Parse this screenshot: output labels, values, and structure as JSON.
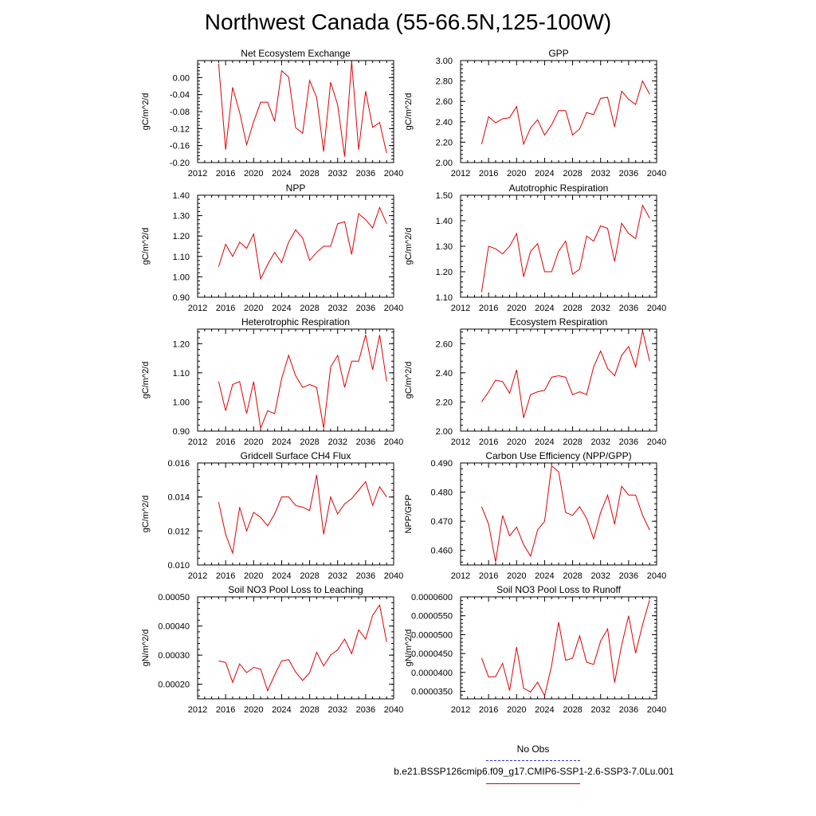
{
  "title": "Northwest Canada (55-66.5N,125-100W)",
  "colors": {
    "series": "#e00000",
    "obs": "#3333cc",
    "axis": "#000000"
  },
  "chart_data": [
    {
      "type": "line",
      "title": "Net Ecosystem Exchange",
      "ylabel": "gC/m^2/d",
      "xlim": [
        2012,
        2040
      ],
      "ylim": [
        -0.2,
        0.04
      ],
      "xticks": [
        "2012",
        "2016",
        "2020",
        "2024",
        "2028",
        "2032",
        "2036",
        "2040"
      ],
      "yticks": [
        "0.00",
        "-0.04",
        "-0.08",
        "-0.12",
        "-0.16",
        "-0.20"
      ],
      "series": [
        {
          "x": [
            2015,
            2016,
            2017,
            2018,
            2019,
            2020,
            2021,
            2022,
            2023,
            2024,
            2025,
            2026,
            2027,
            2028,
            2029,
            2030,
            2031,
            2032,
            2033,
            2034,
            2035,
            2036,
            2037,
            2038,
            2039
          ],
          "y": [
            0.033,
            -0.17,
            -0.023,
            -0.082,
            -0.158,
            -0.104,
            -0.058,
            -0.058,
            -0.103,
            0.016,
            0.001,
            -0.118,
            -0.131,
            -0.007,
            -0.047,
            -0.174,
            -0.011,
            -0.064,
            -0.186,
            0.038,
            -0.17,
            -0.032,
            -0.117,
            -0.106,
            -0.178
          ]
        }
      ]
    },
    {
      "type": "line",
      "title": "GPP",
      "ylabel": "gC/m^2/d",
      "xlim": [
        2012,
        2040
      ],
      "ylim": [
        2.0,
        3.0
      ],
      "xticks": [
        "2012",
        "2016",
        "2020",
        "2024",
        "2028",
        "2032",
        "2036",
        "2040"
      ],
      "yticks": [
        "3.00",
        "2.80",
        "2.60",
        "2.40",
        "2.20",
        "2.00"
      ],
      "series": [
        {
          "x": [
            2015,
            2016,
            2017,
            2018,
            2019,
            2020,
            2021,
            2022,
            2023,
            2024,
            2025,
            2026,
            2027,
            2028,
            2029,
            2030,
            2031,
            2032,
            2033,
            2034,
            2035,
            2036,
            2037,
            2038,
            2039
          ],
          "y": [
            2.18,
            2.45,
            2.39,
            2.43,
            2.44,
            2.55,
            2.18,
            2.34,
            2.42,
            2.27,
            2.37,
            2.51,
            2.51,
            2.27,
            2.33,
            2.49,
            2.47,
            2.63,
            2.64,
            2.35,
            2.7,
            2.62,
            2.57,
            2.8,
            2.67
          ]
        }
      ]
    },
    {
      "type": "line",
      "title": "NPP",
      "ylabel": "gC/m^2/d",
      "xlim": [
        2012,
        2040
      ],
      "ylim": [
        0.9,
        1.4
      ],
      "xticks": [
        "2012",
        "2016",
        "2020",
        "2024",
        "2028",
        "2032",
        "2036",
        "2040"
      ],
      "yticks": [
        "1.40",
        "1.30",
        "1.20",
        "1.10",
        "1.00",
        "0.90"
      ],
      "series": [
        {
          "x": [
            2015,
            2016,
            2017,
            2018,
            2019,
            2020,
            2021,
            2022,
            2023,
            2024,
            2025,
            2026,
            2027,
            2028,
            2029,
            2030,
            2031,
            2032,
            2033,
            2034,
            2035,
            2036,
            2037,
            2038,
            2039
          ],
          "y": [
            1.05,
            1.16,
            1.1,
            1.17,
            1.14,
            1.21,
            0.99,
            1.06,
            1.12,
            1.07,
            1.17,
            1.23,
            1.19,
            1.08,
            1.12,
            1.15,
            1.15,
            1.26,
            1.27,
            1.11,
            1.31,
            1.28,
            1.24,
            1.34,
            1.26
          ]
        }
      ]
    },
    {
      "type": "line",
      "title": "Autotrophic Respiration",
      "ylabel": "gC/m^2/d",
      "xlim": [
        2012,
        2040
      ],
      "ylim": [
        1.1,
        1.5
      ],
      "xticks": [
        "2012",
        "2016",
        "2020",
        "2024",
        "2028",
        "2032",
        "2036",
        "2040"
      ],
      "yticks": [
        "1.50",
        "1.40",
        "1.30",
        "1.20",
        "1.10"
      ],
      "series": [
        {
          "x": [
            2015,
            2016,
            2017,
            2018,
            2019,
            2020,
            2021,
            2022,
            2023,
            2024,
            2025,
            2026,
            2027,
            2028,
            2029,
            2030,
            2031,
            2032,
            2033,
            2034,
            2035,
            2036,
            2037,
            2038,
            2039
          ],
          "y": [
            1.12,
            1.3,
            1.29,
            1.27,
            1.3,
            1.35,
            1.18,
            1.28,
            1.31,
            1.2,
            1.2,
            1.28,
            1.32,
            1.19,
            1.21,
            1.34,
            1.32,
            1.38,
            1.37,
            1.24,
            1.39,
            1.35,
            1.33,
            1.46,
            1.41
          ]
        }
      ]
    },
    {
      "type": "line",
      "title": "Heterotrophic Respiration",
      "ylabel": "gC/m^2/d",
      "xlim": [
        2012,
        2040
      ],
      "ylim": [
        0.9,
        1.25
      ],
      "xticks": [
        "2012",
        "2016",
        "2020",
        "2024",
        "2028",
        "2032",
        "2036",
        "2040"
      ],
      "yticks": [
        "1.20",
        "1.10",
        "1.00",
        "0.90"
      ],
      "series": [
        {
          "x": [
            2015,
            2016,
            2017,
            2018,
            2019,
            2020,
            2021,
            2022,
            2023,
            2024,
            2025,
            2026,
            2027,
            2028,
            2029,
            2030,
            2031,
            2032,
            2033,
            2034,
            2035,
            2036,
            2037,
            2038,
            2039
          ],
          "y": [
            1.07,
            0.97,
            1.06,
            1.07,
            0.96,
            1.07,
            0.91,
            0.97,
            0.96,
            1.08,
            1.16,
            1.09,
            1.05,
            1.06,
            1.05,
            0.91,
            1.12,
            1.16,
            1.05,
            1.14,
            1.14,
            1.23,
            1.11,
            1.23,
            1.07
          ]
        }
      ]
    },
    {
      "type": "line",
      "title": "Ecosystem Respiration",
      "ylabel": "gC/m^2/d",
      "xlim": [
        2012,
        2040
      ],
      "ylim": [
        2.0,
        2.7
      ],
      "xticks": [
        "2012",
        "2016",
        "2020",
        "2024",
        "2028",
        "2032",
        "2036",
        "2040"
      ],
      "yticks": [
        "2.60",
        "2.40",
        "2.20",
        "2.00"
      ],
      "series": [
        {
          "x": [
            2015,
            2016,
            2017,
            2018,
            2019,
            2020,
            2021,
            2022,
            2023,
            2024,
            2025,
            2026,
            2027,
            2028,
            2029,
            2030,
            2031,
            2032,
            2033,
            2034,
            2035,
            2036,
            2037,
            2038,
            2039
          ],
          "y": [
            2.2,
            2.27,
            2.35,
            2.34,
            2.26,
            2.42,
            2.09,
            2.25,
            2.27,
            2.28,
            2.37,
            2.38,
            2.37,
            2.25,
            2.27,
            2.25,
            2.44,
            2.55,
            2.43,
            2.38,
            2.52,
            2.58,
            2.44,
            2.69,
            2.48
          ]
        }
      ]
    },
    {
      "type": "line",
      "title": "Gridcell Surface CH4 Flux",
      "ylabel": "gC/m^2/d",
      "xlim": [
        2012,
        2040
      ],
      "ylim": [
        0.01,
        0.016
      ],
      "xticks": [
        "2012",
        "2016",
        "2020",
        "2024",
        "2028",
        "2032",
        "2036",
        "2040"
      ],
      "yticks": [
        "0.016",
        "0.014",
        "0.012",
        "0.010"
      ],
      "series": [
        {
          "x": [
            2015,
            2016,
            2017,
            2018,
            2019,
            2020,
            2021,
            2022,
            2023,
            2024,
            2025,
            2026,
            2027,
            2028,
            2029,
            2030,
            2031,
            2032,
            2033,
            2034,
            2035,
            2036,
            2037,
            2038,
            2039
          ],
          "y": [
            0.0137,
            0.0118,
            0.0107,
            0.0134,
            0.012,
            0.0131,
            0.0128,
            0.0123,
            0.013,
            0.014,
            0.014,
            0.0135,
            0.0134,
            0.0132,
            0.0153,
            0.0118,
            0.014,
            0.013,
            0.0136,
            0.0139,
            0.0144,
            0.0149,
            0.0135,
            0.0146,
            0.014
          ]
        }
      ]
    },
    {
      "type": "line",
      "title": "Carbon Use Efficiency (NPP/GPP)",
      "ylabel": "NPP/GPP",
      "xlim": [
        2012,
        2040
      ],
      "ylim": [
        0.455,
        0.49
      ],
      "xticks": [
        "2012",
        "2016",
        "2020",
        "2024",
        "2028",
        "2032",
        "2036",
        "2040"
      ],
      "yticks": [
        "0.490",
        "0.480",
        "0.470",
        "0.460"
      ],
      "series": [
        {
          "x": [
            2015,
            2016,
            2017,
            2018,
            2019,
            2020,
            2021,
            2022,
            2023,
            2024,
            2025,
            2026,
            2027,
            2028,
            2029,
            2030,
            2031,
            2032,
            2033,
            2034,
            2035,
            2036,
            2037,
            2038,
            2039
          ],
          "y": [
            0.475,
            0.469,
            0.456,
            0.472,
            0.465,
            0.468,
            0.462,
            0.458,
            0.467,
            0.47,
            0.489,
            0.487,
            0.473,
            0.472,
            0.475,
            0.471,
            0.464,
            0.473,
            0.479,
            0.469,
            0.482,
            0.479,
            0.479,
            0.472,
            0.467
          ]
        }
      ]
    },
    {
      "type": "line",
      "title": "Soil NO3 Pool Loss to Leaching",
      "ylabel": "gN/m^2/d",
      "xlim": [
        2012,
        2040
      ],
      "ylim": [
        0.00015,
        0.0005
      ],
      "xticks": [
        "2012",
        "2016",
        "2020",
        "2024",
        "2028",
        "2032",
        "2036",
        "2040"
      ],
      "yticks": [
        "0.00050",
        "0.00040",
        "0.00030",
        "0.00020"
      ],
      "series": [
        {
          "x": [
            2015,
            2016,
            2017,
            2018,
            2019,
            2020,
            2021,
            2022,
            2023,
            2024,
            2025,
            2026,
            2027,
            2028,
            2029,
            2030,
            2031,
            2032,
            2033,
            2034,
            2035,
            2036,
            2037,
            2038,
            2039
          ],
          "y": [
            0.00028,
            0.000275,
            0.000207,
            0.00027,
            0.00024,
            0.000258,
            0.000252,
            0.000178,
            0.000232,
            0.00028,
            0.000285,
            0.000242,
            0.000213,
            0.00024,
            0.00031,
            0.000263,
            0.0003,
            0.000318,
            0.000355,
            0.000305,
            0.000387,
            0.000355,
            0.000437,
            0.000472,
            0.000345
          ]
        }
      ]
    },
    {
      "type": "line",
      "title": "Soil NO3 Pool Loss to Runoff",
      "ylabel": "gN/m^2/d",
      "xlim": [
        2012,
        2040
      ],
      "ylim": [
        3.3e-05,
        6e-05
      ],
      "xticks": [
        "2012",
        "2016",
        "2020",
        "2024",
        "2028",
        "2032",
        "2036",
        "2040"
      ],
      "yticks": [
        "0.0000600",
        "0.0000550",
        "0.0000500",
        "0.0000450",
        "0.0000400",
        "0.0000350"
      ],
      "series": [
        {
          "x": [
            2015,
            2016,
            2017,
            2018,
            2019,
            2020,
            2021,
            2022,
            2023,
            2024,
            2025,
            2026,
            2027,
            2028,
            2029,
            2030,
            2031,
            2032,
            2033,
            2034,
            2035,
            2036,
            2037,
            2038,
            2039
          ],
          "y": [
            4.38e-05,
            3.88e-05,
            3.89e-05,
            4.24e-05,
            3.52e-05,
            4.67e-05,
            3.58e-05,
            3.48e-05,
            3.74e-05,
            3.38e-05,
            4.18e-05,
            5.33e-05,
            4.32e-05,
            4.38e-05,
            4.97e-05,
            4.27e-05,
            4.21e-05,
            4.83e-05,
            5.15e-05,
            3.73e-05,
            4.72e-05,
            5.5e-05,
            4.51e-05,
            5.27e-05,
            5.92e-05
          ]
        }
      ]
    }
  ],
  "legend": {
    "obs_label": "No Obs",
    "model_label": "b.e21.BSSP126cmip6.f09_g17.CMIP6-SSP1-2.6-SSP3-7.0Lu.001"
  }
}
